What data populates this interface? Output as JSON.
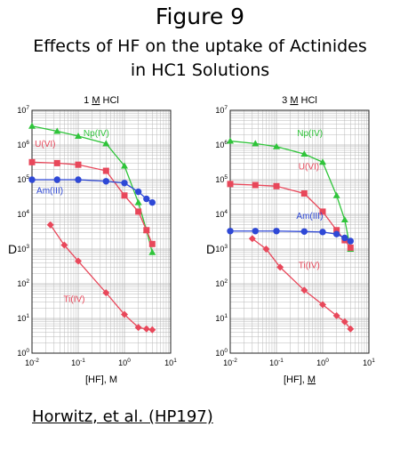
{
  "figure_title": "Figure 9",
  "subtitle_line1": "Effects of HF on the uptake of Actinides",
  "subtitle_line2": "in HC1 Solutions",
  "citation": "Horwitz, et al. (HP197)",
  "colors": {
    "Np(IV)": "#2fc43a",
    "U(VI)": "#e8475a",
    "Am(III)": "#2e48d6",
    "Ti(IV)": "#e8475a",
    "grid": "#b8b8b8"
  },
  "chart_data": [
    {
      "type": "line",
      "title_prefix": "1 ",
      "title_underlined": "M",
      "title_suffix": " HCl",
      "xlabel_prefix": "[HF], ",
      "xlabel_unit": "M",
      "xlabel_unit_underlined": false,
      "ylabel": "D",
      "x_scale": "log",
      "y_scale": "log",
      "xlim": [
        0.01,
        10
      ],
      "ylim": [
        1,
        10000000
      ],
      "grid": true,
      "x_ticks": [
        "10^-2",
        "10^-1",
        "10^0",
        "10^1"
      ],
      "y_ticks": [
        "10^0",
        "10^1",
        "10^2",
        "10^3",
        "10^4",
        "10^5",
        "10^6",
        "10^7"
      ],
      "series": [
        {
          "name": "Np(IV)",
          "marker": "triangle",
          "points": [
            [
              0.01,
              3500000
            ],
            [
              0.035,
              2500000
            ],
            [
              0.1,
              1800000
            ],
            [
              0.4,
              1100000
            ],
            [
              1.0,
              250000
            ],
            [
              2.0,
              22000
            ],
            [
              3.0,
              3500
            ],
            [
              4.0,
              800
            ]
          ]
        },
        {
          "name": "U(VI)",
          "marker": "square",
          "points": [
            [
              0.01,
              320000
            ],
            [
              0.035,
              300000
            ],
            [
              0.1,
              270000
            ],
            [
              0.4,
              180000
            ],
            [
              1.0,
              35000
            ],
            [
              2.0,
              12000
            ],
            [
              3.0,
              3500
            ],
            [
              4.0,
              1400
            ]
          ]
        },
        {
          "name": "Am(III)",
          "marker": "circle",
          "points": [
            [
              0.01,
              100000
            ],
            [
              0.035,
              100000
            ],
            [
              0.1,
              100000
            ],
            [
              0.4,
              90000
            ],
            [
              1.0,
              80000
            ],
            [
              2.0,
              45000
            ],
            [
              3.0,
              28000
            ],
            [
              4.0,
              22000
            ]
          ]
        },
        {
          "name": "Ti(IV)",
          "marker": "diamond",
          "points": [
            [
              0.025,
              5000
            ],
            [
              0.05,
              1300
            ],
            [
              0.1,
              450
            ],
            [
              0.4,
              55
            ],
            [
              1.0,
              13
            ],
            [
              2.0,
              5.5
            ],
            [
              3.0,
              5
            ],
            [
              4.0,
              4.7
            ]
          ]
        }
      ]
    },
    {
      "type": "line",
      "title_prefix": "3 ",
      "title_underlined": "M",
      "title_suffix": " HCl",
      "xlabel_prefix": "[HF], ",
      "xlabel_unit": "M",
      "xlabel_unit_underlined": true,
      "ylabel": "D",
      "x_scale": "log",
      "y_scale": "log",
      "xlim": [
        0.01,
        10
      ],
      "ylim": [
        1,
        10000000
      ],
      "grid": true,
      "x_ticks": [
        "10^-2",
        "10^-1",
        "10^0",
        "10^1"
      ],
      "y_ticks": [
        "10^0",
        "10^1",
        "10^2",
        "10^3",
        "10^4",
        "10^5",
        "10^6",
        "10^7"
      ],
      "series": [
        {
          "name": "Np(IV)",
          "marker": "triangle",
          "points": [
            [
              0.01,
              1300000
            ],
            [
              0.035,
              1100000
            ],
            [
              0.1,
              900000
            ],
            [
              0.4,
              550000
            ],
            [
              1.0,
              320000
            ],
            [
              2.0,
              35000
            ],
            [
              3.0,
              7000
            ],
            [
              4.0,
              1000
            ]
          ]
        },
        {
          "name": "U(VI)",
          "marker": "square",
          "points": [
            [
              0.01,
              75000
            ],
            [
              0.035,
              70000
            ],
            [
              0.1,
              65000
            ],
            [
              0.4,
              40000
            ],
            [
              1.0,
              12000
            ],
            [
              2.0,
              3500
            ],
            [
              3.0,
              1800
            ],
            [
              4.0,
              1100
            ]
          ]
        },
        {
          "name": "Am(III)",
          "marker": "circle",
          "points": [
            [
              0.01,
              3300
            ],
            [
              0.035,
              3300
            ],
            [
              0.1,
              3300
            ],
            [
              0.4,
              3200
            ],
            [
              1.0,
              3100
            ],
            [
              2.0,
              2700
            ],
            [
              3.0,
              2100
            ],
            [
              4.0,
              1700
            ]
          ]
        },
        {
          "name": "Ti(IV)",
          "marker": "diamond",
          "points": [
            [
              0.03,
              2000
            ],
            [
              0.06,
              1000
            ],
            [
              0.12,
              300
            ],
            [
              0.4,
              65
            ],
            [
              1.0,
              25
            ],
            [
              2.0,
              12
            ],
            [
              3.0,
              8
            ],
            [
              4.0,
              5
            ]
          ]
        }
      ]
    }
  ]
}
